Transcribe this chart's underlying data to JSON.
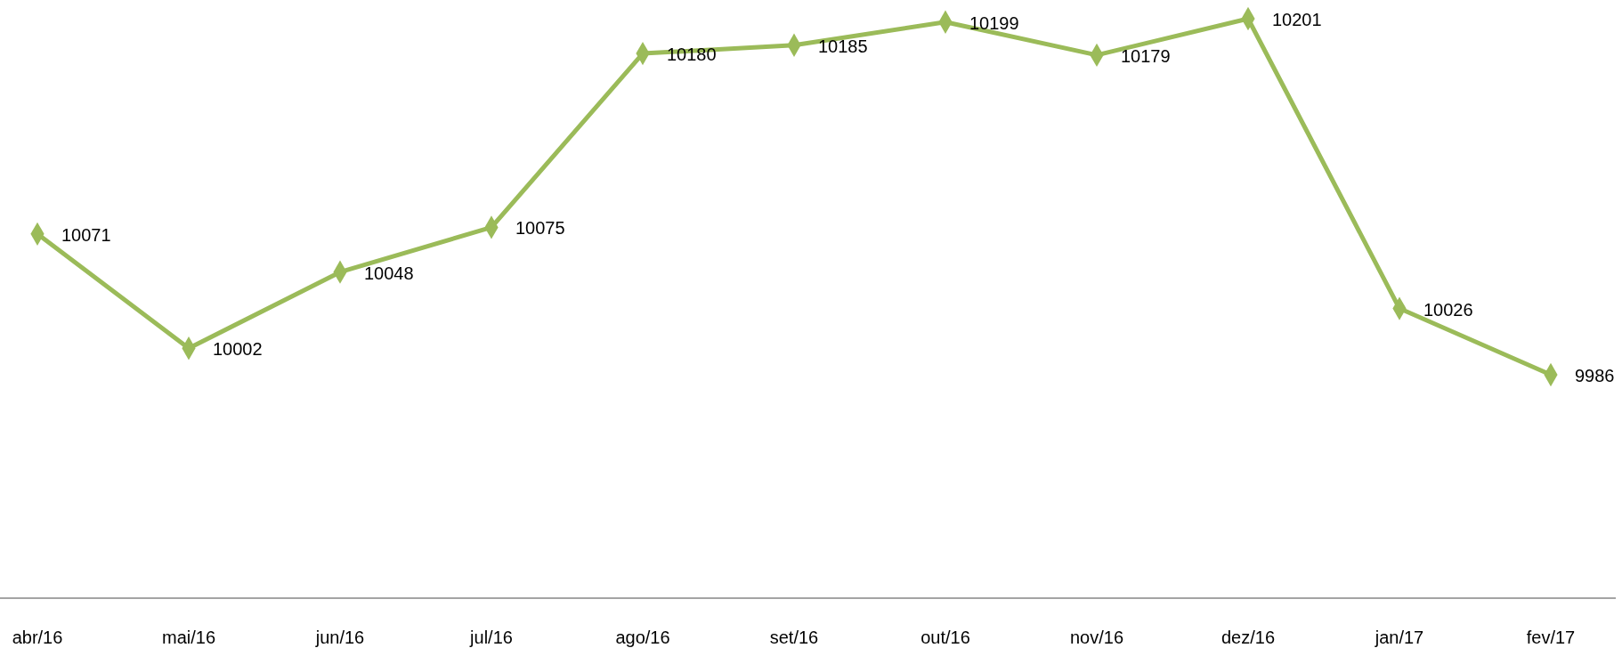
{
  "chart_data": {
    "type": "line",
    "categories": [
      "abr/16",
      "mai/16",
      "jun/16",
      "jul/16",
      "ago/16",
      "set/16",
      "out/16",
      "nov/16",
      "dez/16",
      "jan/17",
      "fev/17"
    ],
    "values": [
      10071,
      10002,
      10048,
      10075,
      10180,
      10185,
      10199,
      10179,
      10201,
      10026,
      9986
    ],
    "color": "#9bbb59",
    "marker": "diamond",
    "line_style": "solid",
    "data_labels": true
  }
}
